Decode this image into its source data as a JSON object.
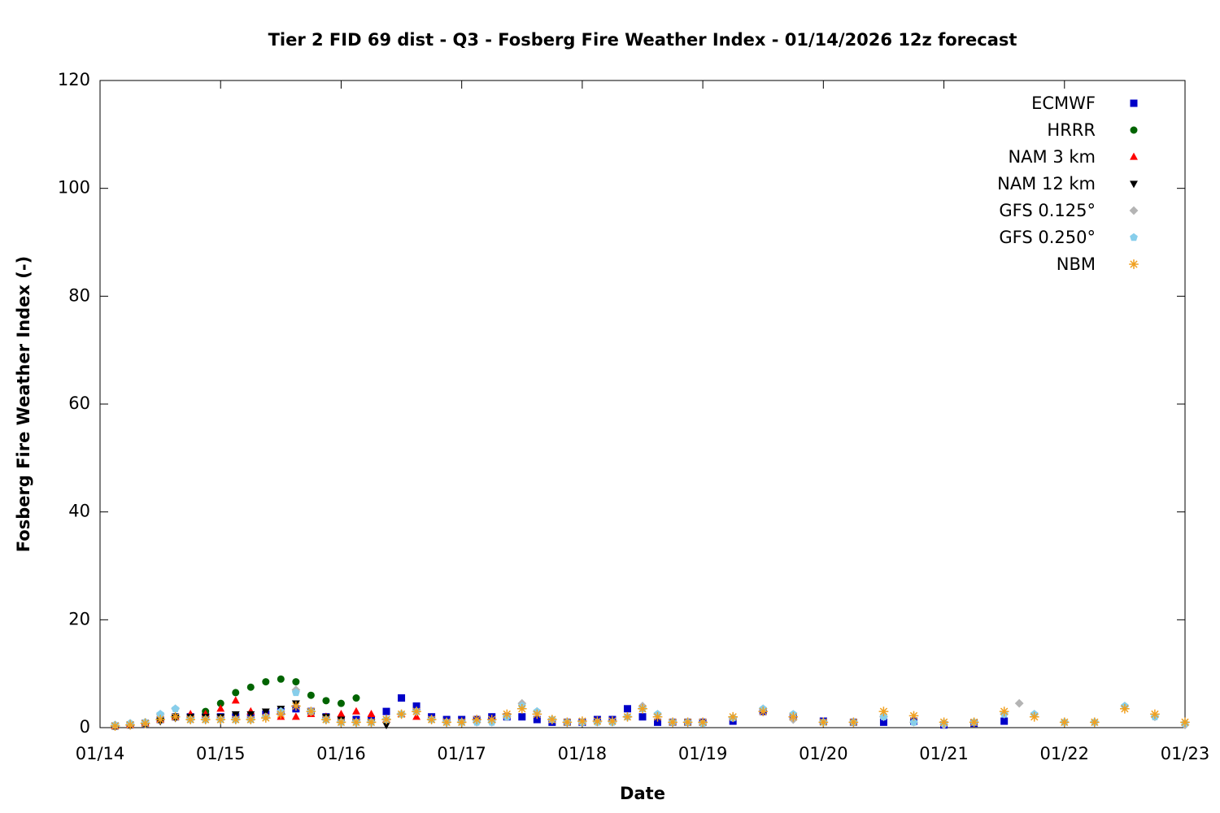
{
  "chart_data": {
    "type": "scatter",
    "title": "Tier 2 FID 69 dist - Q3 - Fosberg Fire Weather Index - 01/14/2026 12z forecast",
    "x_label": "Date",
    "y_label": "Fosberg Fire Weather Index (-)",
    "xlim": [
      0,
      9
    ],
    "xticks": [
      {
        "value": 0,
        "label": "01/14"
      },
      {
        "value": 1,
        "label": "01/15"
      },
      {
        "value": 2,
        "label": "01/16"
      },
      {
        "value": 3,
        "label": "01/17"
      },
      {
        "value": 4,
        "label": "01/18"
      },
      {
        "value": 5,
        "label": "01/19"
      },
      {
        "value": 6,
        "label": "01/20"
      },
      {
        "value": 7,
        "label": "01/21"
      },
      {
        "value": 8,
        "label": "01/22"
      },
      {
        "value": 9,
        "label": "01/23"
      }
    ],
    "ylim": [
      0,
      120
    ],
    "yticks": [
      0,
      20,
      40,
      60,
      80,
      100,
      120
    ],
    "grid": false,
    "legend": "top-right",
    "series": [
      {
        "name": "ECMWF",
        "color": "#0000c8",
        "marker": "square",
        "x": [
          0.125,
          0.25,
          0.375,
          0.5,
          0.625,
          0.75,
          0.875,
          1,
          1.125,
          1.25,
          1.375,
          1.5,
          1.625,
          1.75,
          1.875,
          2,
          2.125,
          2.25,
          2.375,
          2.5,
          2.625,
          2.75,
          2.875,
          3,
          3.125,
          3.25,
          3.375,
          3.5,
          3.625,
          3.75,
          3.875,
          4,
          4.125,
          4.25,
          4.375,
          4.5,
          4.625,
          4.75,
          4.875,
          5,
          5.25,
          5.5,
          5.75,
          6,
          6.25,
          6.5,
          6.75,
          7,
          7.25,
          7.5
        ],
        "values": [
          0.3,
          0.5,
          0.8,
          1.5,
          2,
          2,
          2,
          2,
          2,
          2,
          2.5,
          3,
          3.5,
          3,
          2,
          1.5,
          1.5,
          1.5,
          3,
          5.5,
          4,
          2,
          1.5,
          1.5,
          1.5,
          2,
          2,
          2,
          1.5,
          1,
          1,
          1,
          1.5,
          1.5,
          3.5,
          2,
          1,
          1,
          1,
          1,
          1.2,
          3,
          2,
          1.2,
          1,
          1,
          1.2,
          0.5,
          0.8,
          1.2
        ]
      },
      {
        "name": "HRRR",
        "color": "#006400",
        "marker": "circle",
        "x": [
          0.125,
          0.25,
          0.375,
          0.5,
          0.625,
          0.75,
          0.875,
          1,
          1.125,
          1.25,
          1.375,
          1.5,
          1.625,
          1.75,
          1.875,
          2,
          2.125
        ],
        "values": [
          0.3,
          0.5,
          0.8,
          1.5,
          2,
          2,
          3,
          4.5,
          6.5,
          7.5,
          8.5,
          9,
          8.5,
          6,
          5,
          4.5,
          5.5
        ]
      },
      {
        "name": "NAM 3 km",
        "color": "#ff0000",
        "marker": "triangle-up",
        "x": [
          0.125,
          0.25,
          0.375,
          0.5,
          0.625,
          0.75,
          0.875,
          1,
          1.125,
          1.25,
          1.375,
          1.5,
          1.625,
          1.75,
          1.875,
          2,
          2.125,
          2.25,
          2.375,
          2.5,
          2.625
        ],
        "values": [
          0.3,
          0.5,
          0.8,
          1.5,
          2,
          2.5,
          2.5,
          3.5,
          5,
          3,
          2.5,
          2,
          2,
          2.5,
          2,
          2.5,
          3,
          2.5,
          1.5,
          2.5,
          2
        ]
      },
      {
        "name": "NAM 12 km",
        "color": "#000000",
        "marker": "triangle-down",
        "x": [
          0.125,
          0.25,
          0.375,
          0.5,
          0.625,
          0.75,
          0.875,
          1,
          1.125,
          1.25,
          1.375,
          1.5,
          1.625,
          1.75,
          1.875,
          2,
          2.125,
          2.25,
          2.375
        ],
        "values": [
          0.3,
          0.5,
          0.8,
          1.2,
          1.8,
          2,
          2,
          2,
          2.5,
          2.5,
          3,
          3.5,
          4.5,
          3,
          2,
          1.5,
          1,
          1,
          0.5
        ]
      },
      {
        "name": "GFS 0.125°",
        "color": "#b4b4b4",
        "marker": "diamond",
        "x": [
          0.125,
          0.25,
          0.375,
          0.5,
          0.625,
          0.75,
          0.875,
          1,
          1.125,
          1.25,
          1.375,
          1.5,
          1.625,
          1.75,
          1.875,
          2,
          2.125,
          2.25,
          2.375,
          2.5,
          2.625,
          2.75,
          2.875,
          3,
          3.125,
          3.25,
          3.375,
          3.5,
          3.625,
          3.75,
          3.875,
          4,
          4.125,
          4.25,
          4.375,
          4.5,
          4.625,
          4.75,
          4.875,
          5,
          5.25,
          5.5,
          5.75,
          6,
          6.25,
          6.5,
          6.75,
          7,
          7.25,
          7.5,
          7.625,
          7.75,
          8,
          8.25,
          8.5,
          8.75,
          9
        ],
        "values": [
          0.5,
          0.8,
          1,
          2.5,
          3.5,
          1.5,
          1.5,
          1.5,
          1.5,
          1.5,
          2,
          3,
          7,
          3,
          1.5,
          1,
          1,
          1,
          1.5,
          2.5,
          3,
          1.5,
          1,
          1,
          1,
          1,
          2,
          4.5,
          3,
          1.5,
          1,
          1,
          1,
          1,
          2,
          4,
          2.5,
          1,
          1,
          0.8,
          1.8,
          3.5,
          1.5,
          1,
          1,
          2,
          1,
          0.5,
          1,
          2.5,
          4.5,
          2.5,
          1,
          1,
          4,
          2,
          0.5
        ]
      },
      {
        "name": "GFS 0.250°",
        "color": "#87ceeb",
        "marker": "pentagon",
        "x": [
          0.125,
          0.25,
          0.375,
          0.5,
          0.625,
          0.75,
          0.875,
          1,
          1.125,
          1.25,
          1.375,
          1.5,
          1.625,
          1.75,
          1.875,
          2,
          2.125,
          2.25,
          2.375,
          2.5,
          2.625,
          2.75,
          2.875,
          3,
          3.125,
          3.25,
          3.375,
          3.5,
          3.625,
          3.75,
          3.875,
          4,
          4.125,
          4.25,
          4.375,
          4.5,
          4.625,
          4.75,
          4.875,
          5,
          5.25,
          5.5,
          5.75,
          6,
          6.25,
          6.5,
          6.75,
          7,
          7.25,
          7.5,
          7.75,
          8,
          8.25,
          8.5,
          8.75,
          9
        ],
        "values": [
          0.5,
          0.8,
          1,
          2.5,
          3.5,
          1.5,
          1.5,
          1.5,
          1.5,
          1.5,
          2,
          3,
          6.5,
          3,
          1.5,
          1,
          1,
          1,
          1.5,
          2.5,
          3,
          1.5,
          1,
          1,
          1,
          1,
          2,
          4,
          3,
          1.5,
          1,
          1,
          1,
          1,
          2,
          3.5,
          2.5,
          1,
          1,
          0.8,
          1.8,
          3.5,
          2.5,
          1,
          1,
          2,
          1,
          0.8,
          1,
          2.5,
          2.5,
          1,
          1,
          4,
          2,
          0.8
        ]
      },
      {
        "name": "NBM",
        "color": "#f0a020",
        "marker": "asterisk",
        "x": [
          0.125,
          0.25,
          0.375,
          0.5,
          0.625,
          0.75,
          0.875,
          1,
          1.125,
          1.25,
          1.375,
          1.5,
          1.625,
          1.75,
          1.875,
          2,
          2.125,
          2.25,
          2.375,
          2.5,
          2.625,
          2.75,
          2.875,
          3,
          3.125,
          3.25,
          3.375,
          3.5,
          3.625,
          3.75,
          3.875,
          4,
          4.125,
          4.25,
          4.375,
          4.5,
          4.625,
          4.75,
          4.875,
          5,
          5.25,
          5.5,
          5.75,
          6,
          6.25,
          6.5,
          6.75,
          7,
          7.25,
          7.5,
          7.75,
          8,
          8.25,
          8.5,
          8.75,
          9
        ],
        "values": [
          0.3,
          0.5,
          0.8,
          1.5,
          2,
          1.5,
          1.5,
          1.5,
          1.5,
          1.5,
          1.8,
          2.5,
          4,
          3,
          1.5,
          1,
          1,
          1,
          1.5,
          2.5,
          3,
          1.5,
          1,
          1,
          1.5,
          1.5,
          2.5,
          3.5,
          2.5,
          1.5,
          1,
          1.2,
          1.2,
          1.2,
          2,
          3.5,
          2,
          1,
          1,
          1,
          2,
          3,
          2,
          1,
          1,
          3,
          2.2,
          1,
          1,
          3,
          2,
          1,
          1,
          3.5,
          2.5,
          1
        ]
      }
    ]
  }
}
